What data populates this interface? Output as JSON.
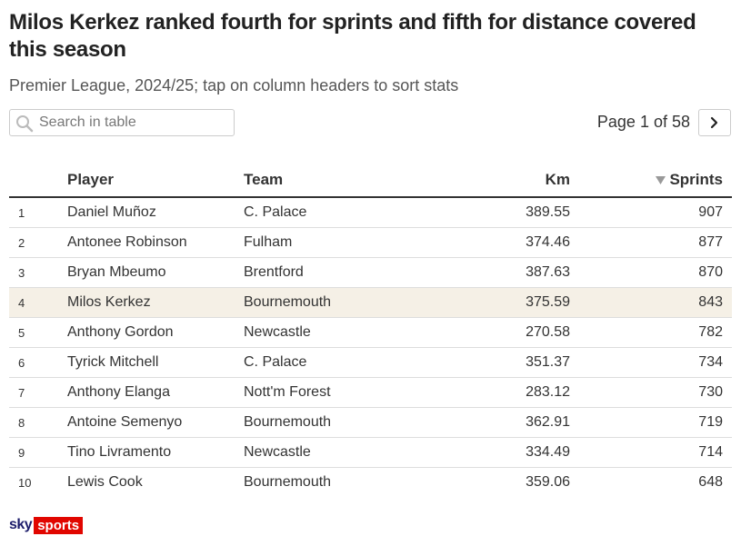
{
  "title": "Milos Kerkez ranked fourth for sprints and fifth for distance covered this season",
  "subtitle": "Premier League, 2024/25; tap on column headers to sort stats",
  "search": {
    "placeholder": "Search in table"
  },
  "pager": {
    "text": "Page 1 of 58",
    "icon": "chevron-right-icon"
  },
  "columns": {
    "rank": "",
    "player": "Player",
    "team": "Team",
    "km": "Km",
    "sprints": "Sprints"
  },
  "sort": {
    "column": "Sprints",
    "direction": "descending",
    "icon": "sort-down-triangle-icon"
  },
  "highlight_color": "#f5f0e6",
  "logo": {
    "sky": "sky",
    "sports": "sports",
    "brand_red": "#e10600",
    "brand_navy": "#1d1d6b"
  },
  "chart_data": {
    "type": "table",
    "columns": [
      "",
      "Player",
      "Team",
      "Km",
      "Sprints"
    ],
    "rows": [
      {
        "rank": "1",
        "player": "Daniel Muñoz",
        "team": "C. Palace",
        "km": "389.55",
        "sprints": "907"
      },
      {
        "rank": "2",
        "player": "Antonee Robinson",
        "team": "Fulham",
        "km": "374.46",
        "sprints": "877"
      },
      {
        "rank": "3",
        "player": "Bryan Mbeumo",
        "team": "Brentford",
        "km": "387.63",
        "sprints": "870"
      },
      {
        "rank": "4",
        "player": "Milos Kerkez",
        "team": "Bournemouth",
        "km": "375.59",
        "sprints": "843",
        "highlighted": true
      },
      {
        "rank": "5",
        "player": "Anthony Gordon",
        "team": "Newcastle",
        "km": "270.58",
        "sprints": "782"
      },
      {
        "rank": "6",
        "player": "Tyrick Mitchell",
        "team": "C. Palace",
        "km": "351.37",
        "sprints": "734"
      },
      {
        "rank": "7",
        "player": "Anthony Elanga",
        "team": "Nott'm Forest",
        "km": "283.12",
        "sprints": "730"
      },
      {
        "rank": "8",
        "player": "Antoine Semenyo",
        "team": "Bournemouth",
        "km": "362.91",
        "sprints": "719"
      },
      {
        "rank": "9",
        "player": "Tino Livramento",
        "team": "Newcastle",
        "km": "334.49",
        "sprints": "714"
      },
      {
        "rank": "10",
        "player": "Lewis Cook",
        "team": "Bournemouth",
        "km": "359.06",
        "sprints": "648"
      }
    ]
  }
}
